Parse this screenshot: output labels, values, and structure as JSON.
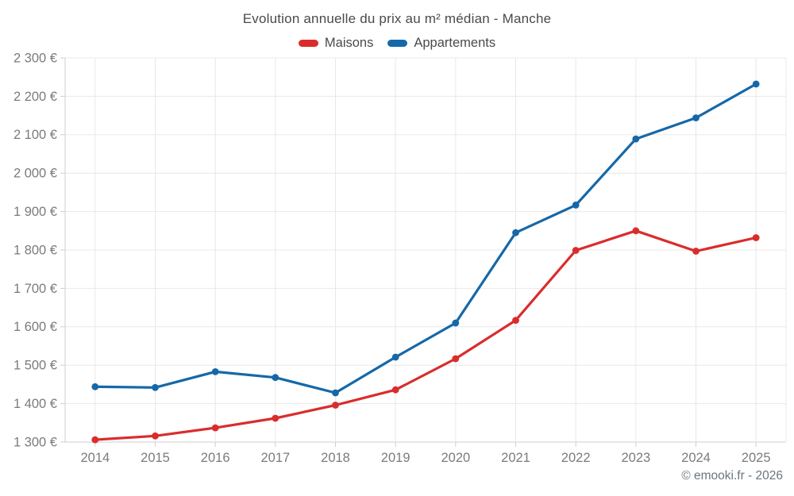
{
  "header": {
    "title": "Evolution annuelle du prix au m² médian - Manche"
  },
  "footer": {
    "credit": "© emooki.fr - 2026"
  },
  "colors": {
    "maisons": "#da2c2c",
    "appartements": "#1568a8",
    "gridline": "#e8e8e8",
    "axis_line": "#cfcfcf",
    "axis_text": "#7b7b7b",
    "title_text": "#4a4a4a",
    "background": "#ffffff"
  },
  "chart_data": {
    "type": "line",
    "title": "Evolution annuelle du prix au m² médian - Manche",
    "categories": [
      "2014",
      "2015",
      "2016",
      "2017",
      "2018",
      "2019",
      "2020",
      "2021",
      "2022",
      "2023",
      "2024",
      "2025"
    ],
    "series": [
      {
        "name": "Maisons",
        "color": "#da2c2c",
        "values": [
          1306,
          1316,
          1337,
          1362,
          1396,
          1436,
          1517,
          1617,
          1799,
          1850,
          1797,
          1832
        ]
      },
      {
        "name": "Appartements",
        "color": "#1568a8",
        "values": [
          1444,
          1442,
          1483,
          1468,
          1428,
          1521,
          1610,
          1845,
          1917,
          2089,
          2144,
          2232
        ]
      }
    ],
    "xlabel": "",
    "ylabel": "",
    "ylim": [
      1300,
      2300
    ],
    "y_tick_step": 100,
    "y_tick_labels": [
      "1 300 €",
      "1 400 €",
      "1 500 €",
      "1 600 €",
      "1 700 €",
      "1 800 €",
      "1 900 €",
      "2 000 €",
      "2 100 €",
      "2 200 €",
      "2 300 €"
    ],
    "grid": true,
    "legend_position": "top"
  }
}
